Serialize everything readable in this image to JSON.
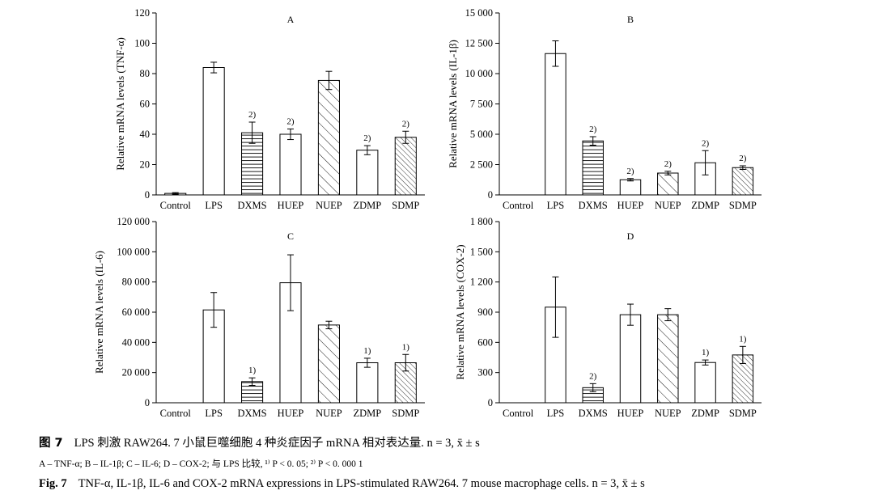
{
  "chart_data": [
    {
      "type": "bar",
      "panel_label": "A",
      "ylabel": "Relative mRNA levels (TNF-α)",
      "ylim": [
        0,
        120
      ],
      "yticks": [
        "0",
        "20",
        "40",
        "60",
        "80",
        "100",
        "120"
      ],
      "yticks_values": [
        0,
        20,
        40,
        60,
        80,
        100,
        120
      ],
      "categories": [
        "Control",
        "LPS",
        "DXMS",
        "HUEP",
        "NUEP",
        "ZDMP",
        "SDMP"
      ],
      "patterns": [
        "open",
        "open",
        "horizontal",
        "open",
        "diagonal",
        "open",
        "diagonal-dense"
      ],
      "values": [
        1,
        84,
        41,
        40,
        75.5,
        29.5,
        38
      ],
      "errors": [
        0.5,
        3.5,
        7,
        3.5,
        6,
        3,
        4
      ],
      "annotations": [
        "",
        "",
        "2)",
        "2)",
        "",
        "2)",
        "2)"
      ]
    },
    {
      "type": "bar",
      "panel_label": "B",
      "ylabel": "Relative mRNA levels (IL-1β)",
      "ylim": [
        0,
        15000
      ],
      "yticks": [
        "0",
        "2 500",
        "5 000",
        "7 500",
        "10 000",
        "12 500",
        "15 000"
      ],
      "yticks_values": [
        0,
        2500,
        5000,
        7500,
        10000,
        12500,
        15000
      ],
      "categories": [
        "Control",
        "LPS",
        "DXMS",
        "HUEP",
        "NUEP",
        "ZDMP",
        "SDMP"
      ],
      "patterns": [
        "open",
        "open",
        "horizontal",
        "open",
        "diagonal",
        "open",
        "diagonal-dense"
      ],
      "values": [
        0,
        11650,
        4450,
        1250,
        1800,
        2650,
        2250
      ],
      "errors": [
        0,
        1050,
        350,
        100,
        150,
        1000,
        150
      ],
      "annotations": [
        "",
        "",
        "2)",
        "2)",
        "2)",
        "2)",
        "2)"
      ]
    },
    {
      "type": "bar",
      "panel_label": "C",
      "ylabel": "Relative mRNA levels (IL-6)",
      "ylim": [
        0,
        120000
      ],
      "yticks": [
        "0",
        "20 000",
        "40 000",
        "60 000",
        "80 000",
        "100 000",
        "120 000"
      ],
      "yticks_values": [
        0,
        20000,
        40000,
        60000,
        80000,
        100000,
        120000
      ],
      "categories": [
        "Control",
        "LPS",
        "DXMS",
        "HUEP",
        "NUEP",
        "ZDMP",
        "SDMP"
      ],
      "patterns": [
        "open",
        "open",
        "horizontal",
        "open",
        "diagonal",
        "open",
        "diagonal-dense"
      ],
      "values": [
        0,
        61500,
        14000,
        79500,
        51500,
        26500,
        26500
      ],
      "errors": [
        0,
        11500,
        2500,
        18500,
        2500,
        3000,
        5500
      ],
      "annotations": [
        "",
        "",
        "1)",
        "",
        "",
        "1)",
        "1)"
      ]
    },
    {
      "type": "bar",
      "panel_label": "D",
      "ylabel": "Relative mRNA levels (COX-2)",
      "ylim": [
        0,
        1800
      ],
      "yticks": [
        "0",
        "300",
        "600",
        "900",
        "1 200",
        "1 500",
        "1 800"
      ],
      "yticks_values": [
        0,
        300,
        600,
        900,
        1200,
        1500,
        1800
      ],
      "categories": [
        "Control",
        "LPS",
        "DXMS",
        "HUEP",
        "NUEP",
        "ZDMP",
        "SDMP"
      ],
      "patterns": [
        "open",
        "open",
        "horizontal",
        "open",
        "diagonal",
        "open",
        "diagonal-dense"
      ],
      "values": [
        0,
        950,
        150,
        875,
        875,
        400,
        475
      ],
      "errors": [
        0,
        300,
        40,
        105,
        60,
        25,
        85
      ],
      "annotations": [
        "",
        "",
        "2)",
        "",
        "",
        "1)",
        "1)"
      ]
    }
  ],
  "caption": {
    "zh_label": "图 7",
    "zh_text": "LPS 刺激 RAW264. 7 小鼠巨噬细胞 4 种炎症因子 mRNA 相对表达量. n = 3, x̄ ± s",
    "notes": "A – TNF-α; B – IL-1β; C – IL-6; D – COX-2; 与 LPS 比较, ¹⁾ P < 0. 05; ²⁾ P < 0. 000 1",
    "en_label": "Fig. 7",
    "en_text": "TNF-α, IL-1β, IL-6 and COX-2 mRNA expressions in LPS-stimulated RAW264. 7 mouse macrophage cells.  n = 3, x̄ ± s"
  }
}
